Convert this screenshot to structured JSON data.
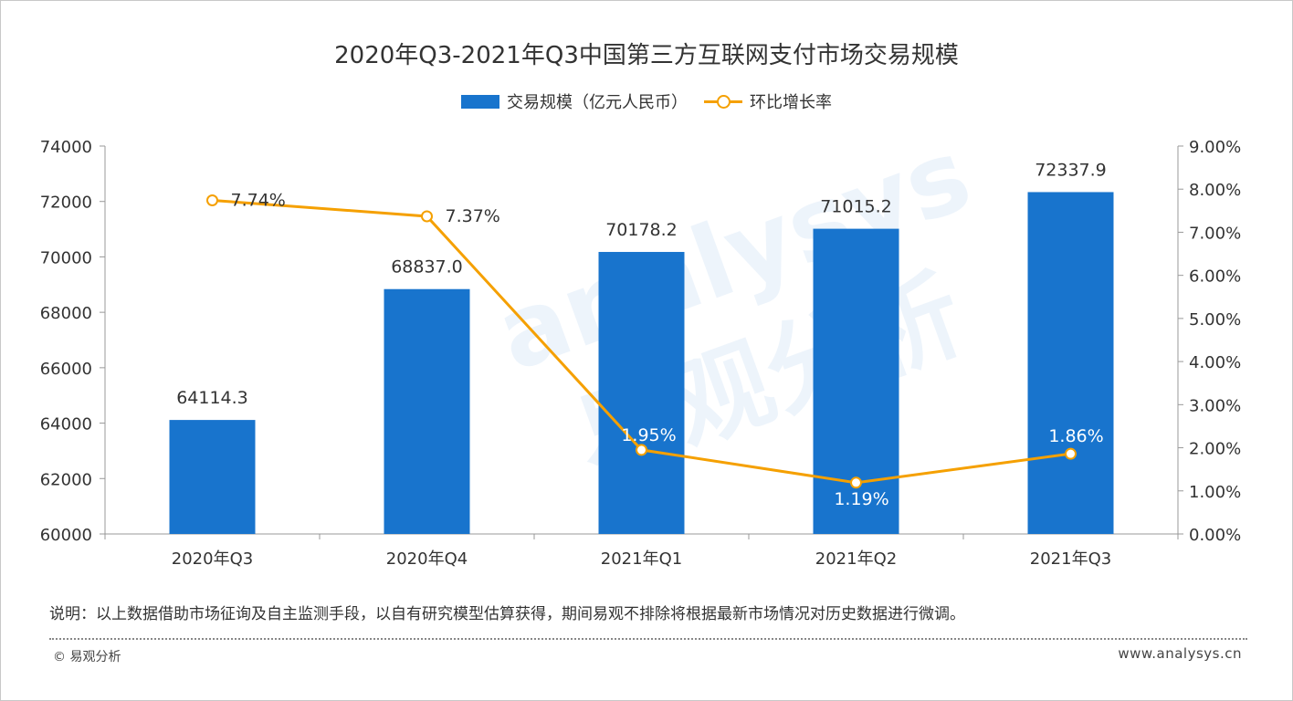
{
  "title": "2020年Q3-2021年Q3中国第三方互联网支付市场交易规模",
  "legend": {
    "bar_label": "交易规模（亿元人民币）",
    "line_label": "环比增长率"
  },
  "chart_data": {
    "type": "bar",
    "categories": [
      "2020年Q3",
      "2020年Q4",
      "2021年Q1",
      "2021年Q2",
      "2021年Q3"
    ],
    "series": [
      {
        "name": "交易规模（亿元人民币）",
        "type": "bar",
        "axis": "left",
        "values": [
          64114.3,
          68837.0,
          70178.2,
          71015.2,
          72337.9
        ],
        "labels": [
          "64114.3",
          "68837.0",
          "70178.2",
          "71015.2",
          "72337.9"
        ],
        "color": "#1874cd"
      },
      {
        "name": "环比增长率",
        "type": "line",
        "axis": "right",
        "values": [
          7.74,
          7.37,
          1.95,
          1.19,
          1.86
        ],
        "labels": [
          "7.74%",
          "7.37%",
          "1.95%",
          "1.19%",
          "1.86%"
        ],
        "color": "#f5a000"
      }
    ],
    "left_axis": {
      "min": 60000,
      "max": 74000,
      "ticks": [
        "60000",
        "62000",
        "64000",
        "66000",
        "68000",
        "70000",
        "72000",
        "74000"
      ]
    },
    "right_axis": {
      "min": 0,
      "max": 9,
      "ticks": [
        "0.00%",
        "1.00%",
        "2.00%",
        "3.00%",
        "4.00%",
        "5.00%",
        "6.00%",
        "7.00%",
        "8.00%",
        "9.00%"
      ]
    }
  },
  "note": "说明：以上数据借助市场征询及自主监测手段，以自有研究模型估算获得，期间易观不排除将根据最新市场情况对历史数据进行微调。",
  "footer": {
    "copyright": "© 易观分析",
    "website": "www.analysys.cn"
  },
  "watermark": {
    "latin": "analysys",
    "chinese": "易观分析"
  },
  "colors": {
    "bar": "#1874cd",
    "line": "#f5a000",
    "text": "#333333"
  }
}
